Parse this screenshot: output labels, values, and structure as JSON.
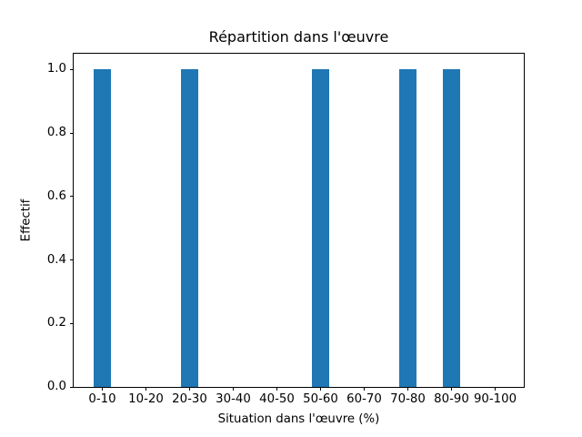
{
  "chart_data": {
    "type": "bar",
    "title": "Répartition dans l'œuvre",
    "xlabel": "Situation dans l'œuvre (%)",
    "ylabel": "Effectif",
    "categories": [
      "0-10",
      "10-20",
      "20-30",
      "30-40",
      "40-50",
      "50-60",
      "60-70",
      "70-80",
      "80-90",
      "90-100"
    ],
    "values": [
      1,
      0,
      1,
      0,
      0,
      1,
      0,
      1,
      1,
      0
    ],
    "ytick_labels": [
      "0.0",
      "0.2",
      "0.4",
      "0.6",
      "0.8",
      "1.0"
    ],
    "ylim": [
      0,
      1.05
    ],
    "bar_color": "#1f77b4",
    "axis_color": "#000000",
    "grid": false,
    "legend_position": "none"
  }
}
